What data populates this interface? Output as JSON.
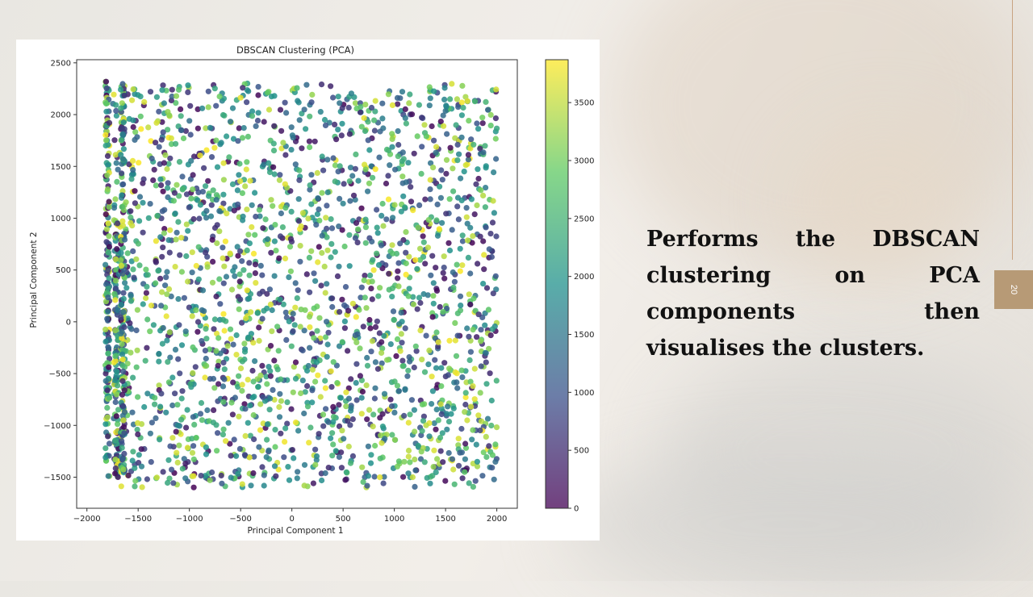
{
  "slide": {
    "body_text": "Performs the DBSCAN clustering on PCA components then visualises the clusters.",
    "page_number": "20"
  },
  "chart_data": {
    "type": "scatter",
    "title": "DBSCAN Clustering (PCA)",
    "xlabel": "Principal Component 1",
    "ylabel": "Principal Component 2",
    "xlim": [
      -2100,
      2200
    ],
    "ylim": [
      -1800,
      2530
    ],
    "xticks": [
      -2000,
      -1500,
      -1000,
      -500,
      0,
      500,
      1000,
      1500,
      2000
    ],
    "yticks": [
      -1500,
      -1000,
      -500,
      0,
      500,
      1000,
      1500,
      2000,
      2500
    ],
    "grid": false,
    "colormap": "viridis",
    "colorbar": {
      "min": 0,
      "max": 3870,
      "ticks": [
        0,
        500,
        1000,
        1500,
        2000,
        2500,
        3000,
        3500
      ]
    },
    "colormap_stops": [
      "#440154",
      "#3b528b",
      "#21918c",
      "#5ec962",
      "#fde725"
    ],
    "point_alpha": 0.6,
    "points_description": "~2500 points uniformly spread over x in [-1900, 2000] and y in [-1600, 2300], colored by cluster label; dense vertical strips near x = -1800, -1710 and -1650.",
    "x_range": [
      -1900,
      2000
    ],
    "y_range": [
      -1600,
      2300
    ],
    "vertical_strips": [
      {
        "x": -1800,
        "y_range": [
          -1500,
          2320
        ]
      },
      {
        "x": -1710,
        "y_range": [
          -1500,
          1000
        ]
      },
      {
        "x": -1650,
        "y_range": [
          -1500,
          2300
        ]
      }
    ]
  }
}
